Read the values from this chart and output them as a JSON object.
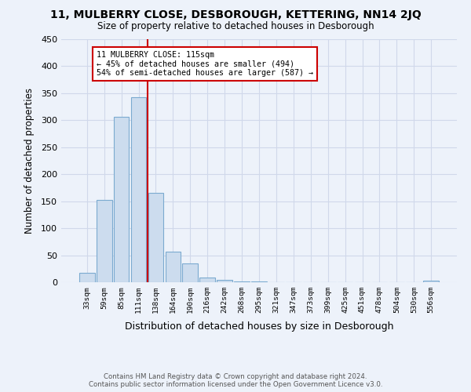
{
  "title": "11, MULBERRY CLOSE, DESBOROUGH, KETTERING, NN14 2JQ",
  "subtitle": "Size of property relative to detached houses in Desborough",
  "xlabel": "Distribution of detached houses by size in Desborough",
  "ylabel": "Number of detached properties",
  "bar_labels": [
    "33sqm",
    "59sqm",
    "85sqm",
    "111sqm",
    "138sqm",
    "164sqm",
    "190sqm",
    "216sqm",
    "242sqm",
    "268sqm",
    "295sqm",
    "321sqm",
    "347sqm",
    "373sqm",
    "399sqm",
    "425sqm",
    "451sqm",
    "478sqm",
    "504sqm",
    "530sqm",
    "556sqm"
  ],
  "bar_values": [
    18,
    152,
    307,
    342,
    165,
    57,
    35,
    9,
    4,
    2,
    1,
    0,
    0,
    0,
    0,
    0,
    0,
    0,
    0,
    0,
    3
  ],
  "bar_color": "#ccdcee",
  "bar_edge_color": "#7baad0",
  "vline_color": "#cc0000",
  "annotation_lines": [
    "11 MULBERRY CLOSE: 115sqm",
    "← 45% of detached houses are smaller (494)",
    "54% of semi-detached houses are larger (587) →"
  ],
  "annotation_box_color": "#ffffff",
  "annotation_box_edge": "#cc0000",
  "ylim": [
    0,
    450
  ],
  "yticks": [
    0,
    50,
    100,
    150,
    200,
    250,
    300,
    350,
    400,
    450
  ],
  "grid_color": "#d0d8ea",
  "footer_line1": "Contains HM Land Registry data © Crown copyright and database right 2024.",
  "footer_line2": "Contains public sector information licensed under the Open Government Licence v3.0.",
  "bg_color": "#edf2fa"
}
